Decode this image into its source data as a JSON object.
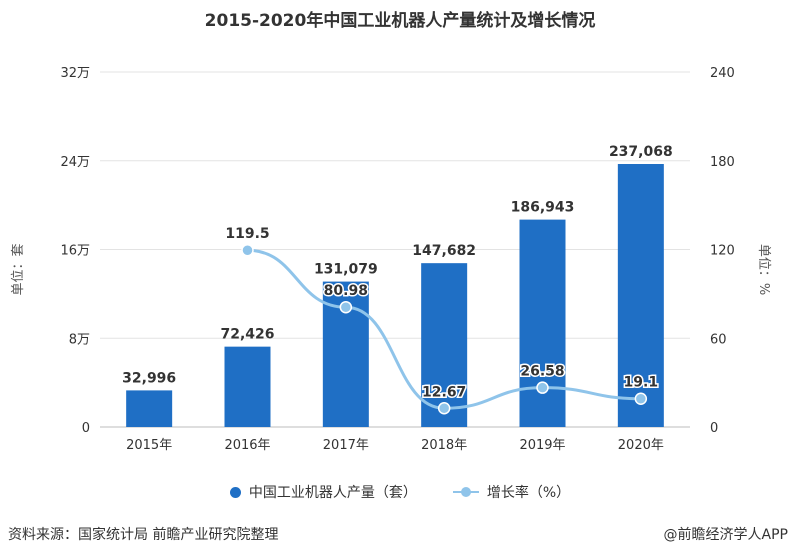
{
  "title": "2015-2020年中国工业机器人产量统计及增长情况",
  "source": "资料来源：国家统计局 前瞻产业研究院整理",
  "credit": "@前瞻经济学人APP",
  "colors": {
    "bar": "#1f6fc5",
    "line": "#8fc4ea",
    "grid": "#e3e3e3",
    "text": "#333333"
  },
  "chart_data": {
    "type": "bar",
    "categories": [
      "2015年",
      "2016年",
      "2017年",
      "2018年",
      "2019年",
      "2020年"
    ],
    "series": [
      {
        "name": "中国工业机器人产量（套）",
        "type": "bar",
        "axis": "left",
        "values": [
          32996,
          72426,
          131079,
          147682,
          186943,
          237068
        ],
        "labels": [
          "32,996",
          "72,426",
          "131,079",
          "147,682",
          "186,943",
          "237,068"
        ]
      },
      {
        "name": "增长率（%）",
        "type": "line",
        "axis": "right",
        "values": [
          null,
          119.5,
          80.98,
          12.67,
          26.58,
          19.1
        ],
        "labels": [
          "",
          "119.5",
          "80.98",
          "12.67",
          "26.58",
          "19.1"
        ]
      }
    ],
    "y_left": {
      "label": "单位：套",
      "ylim": [
        0,
        320000
      ],
      "ticks": [
        0,
        80000,
        160000,
        240000,
        320000
      ],
      "tick_labels": [
        "0",
        "8万",
        "16万",
        "24万",
        "32万"
      ]
    },
    "y_right": {
      "label": "单位：%",
      "ylim": [
        0,
        240
      ],
      "ticks": [
        0,
        60,
        120,
        180,
        240
      ],
      "tick_labels": [
        "0",
        "60",
        "120",
        "180",
        "240"
      ]
    },
    "grid": true,
    "legend": "bottom"
  }
}
